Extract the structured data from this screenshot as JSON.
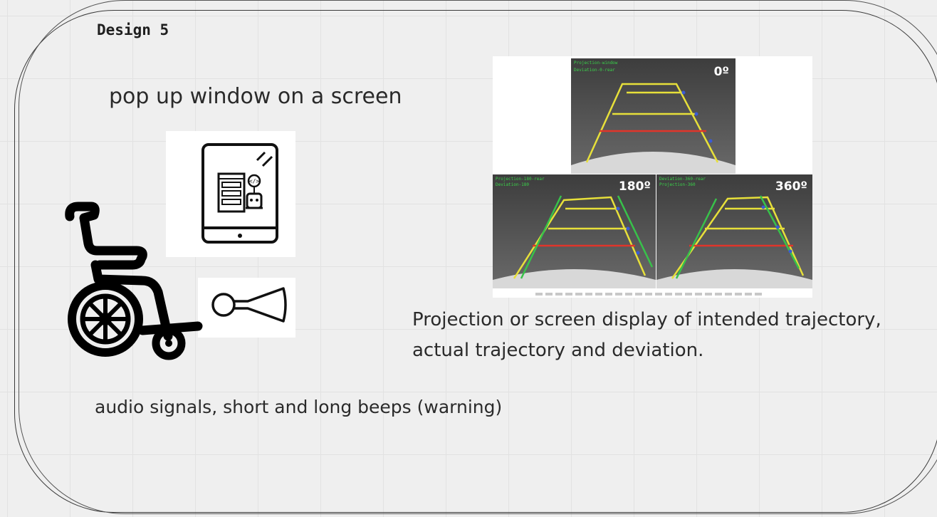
{
  "design": {
    "title": "Design 5"
  },
  "ideas": {
    "popup": "pop up window on a screen",
    "projection_line1": "Projection or screen display of intended trajectory,",
    "projection_line2": "actual trajectory and deviation.",
    "audio": "audio signals, short  and long beeps (warning)"
  },
  "camera_views": [
    {
      "label": "0º"
    },
    {
      "label": "180º"
    },
    {
      "label": "360º"
    }
  ],
  "icons": {
    "tablet": "tablet-robot-icon",
    "horn": "horn-icon",
    "wheelchair": "wheelchair-icon"
  },
  "colors": {
    "guide_yellow": "#e7e03a",
    "guide_red": "#e0352a",
    "guide_green": "#38c24a",
    "road": "#5b5b5b"
  }
}
